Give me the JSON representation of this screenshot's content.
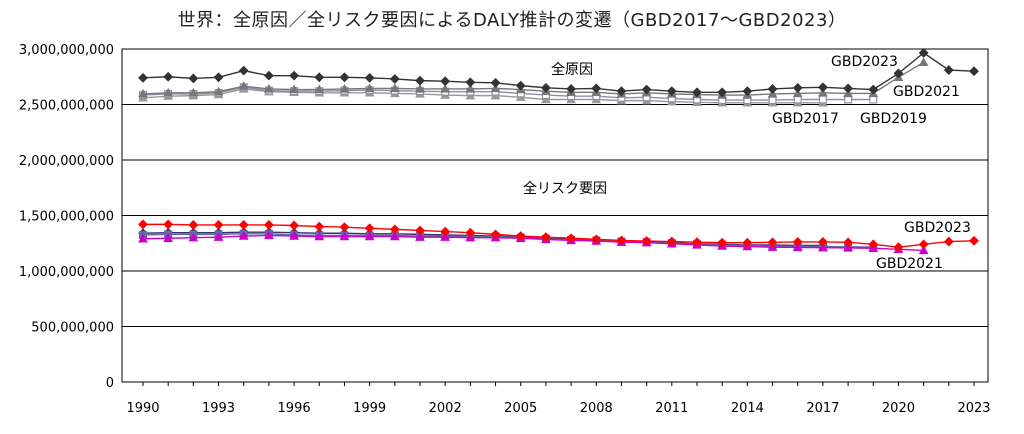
{
  "chart_data": {
    "type": "line",
    "title": "世界：全原因／全リスク要因によるDALY推計の変遷（GBD2017〜GBD2023）",
    "xlabel": "",
    "ylabel": "",
    "ylim": [
      0,
      3000000000
    ],
    "xlim": [
      1990,
      2023
    ],
    "y_ticks": [
      0,
      500000000,
      1000000000,
      1500000000,
      2000000000,
      2500000000,
      3000000000
    ],
    "y_tick_labels": [
      "0",
      "500,000,000",
      "1,000,000,000",
      "1,500,000,000",
      "2,000,000,000",
      "2,500,000,000",
      "3,000,000,000"
    ],
    "x_tick_labels": [
      "1990",
      "1993",
      "1996",
      "1999",
      "2002",
      "2005",
      "2008",
      "2011",
      "2014",
      "2017",
      "2020",
      "2023"
    ],
    "grid": "horizontal",
    "legend": "none",
    "annotations": {
      "all_cause": "全原因",
      "all_risk": "全リスク要因",
      "gbd2023_top": "GBD2023",
      "gbd2021_top": "GBD2021",
      "gbd2017": "GBD2017",
      "gbd2019": "GBD2019",
      "gbd2023_risk": "GBD2023",
      "gbd2021_risk": "GBD2021"
    },
    "series": [
      {
        "group": "all_cause",
        "edition": "GBD2023",
        "color": "#333333",
        "marker": "diamond",
        "x": [
          1990,
          1991,
          1992,
          1993,
          1994,
          1995,
          1996,
          1997,
          1998,
          1999,
          2000,
          2001,
          2002,
          2003,
          2004,
          2005,
          2006,
          2007,
          2008,
          2009,
          2010,
          2011,
          2012,
          2013,
          2014,
          2015,
          2016,
          2017,
          2018,
          2019,
          2020,
          2021,
          2022,
          2023
        ],
        "values": [
          2740000000,
          2750000000,
          2735000000,
          2745000000,
          2805000000,
          2760000000,
          2760000000,
          2745000000,
          2745000000,
          2740000000,
          2730000000,
          2715000000,
          2710000000,
          2700000000,
          2695000000,
          2670000000,
          2650000000,
          2640000000,
          2645000000,
          2620000000,
          2635000000,
          2620000000,
          2610000000,
          2610000000,
          2620000000,
          2640000000,
          2650000000,
          2655000000,
          2645000000,
          2635000000,
          2780000000,
          2965000000,
          2810000000,
          2800000000
        ]
      },
      {
        "group": "all_cause",
        "edition": "GBD2021",
        "color": "#777777",
        "marker": "triangle",
        "x": [
          1990,
          1991,
          1992,
          1993,
          1994,
          1995,
          1996,
          1997,
          1998,
          1999,
          2000,
          2001,
          2002,
          2003,
          2004,
          2005,
          2006,
          2007,
          2008,
          2009,
          2010,
          2011,
          2012,
          2013,
          2014,
          2015,
          2016,
          2017,
          2018,
          2019,
          2020,
          2021
        ],
        "values": [
          2595000000,
          2605000000,
          2605000000,
          2615000000,
          2665000000,
          2640000000,
          2635000000,
          2635000000,
          2640000000,
          2645000000,
          2645000000,
          2640000000,
          2640000000,
          2640000000,
          2645000000,
          2635000000,
          2620000000,
          2610000000,
          2610000000,
          2595000000,
          2605000000,
          2595000000,
          2590000000,
          2585000000,
          2585000000,
          2595000000,
          2600000000,
          2605000000,
          2600000000,
          2600000000,
          2745000000,
          2880000000
        ]
      },
      {
        "group": "all_cause",
        "edition": "GBD2019",
        "color": "#8f8fa8",
        "marker": "square",
        "x": [
          1990,
          1991,
          1992,
          1993,
          1994,
          1995,
          1996,
          1997,
          1998,
          1999,
          2000,
          2001,
          2002,
          2003,
          2004,
          2005,
          2006,
          2007,
          2008,
          2009,
          2010,
          2011,
          2012,
          2013,
          2014,
          2015,
          2016,
          2017,
          2018,
          2019
        ],
        "values": [
          2585000000,
          2595000000,
          2595000000,
          2605000000,
          2655000000,
          2625000000,
          2620000000,
          2620000000,
          2625000000,
          2630000000,
          2625000000,
          2620000000,
          2615000000,
          2615000000,
          2615000000,
          2600000000,
          2585000000,
          2575000000,
          2575000000,
          2560000000,
          2565000000,
          2555000000,
          2545000000,
          2540000000,
          2540000000,
          2540000000,
          2545000000,
          2545000000,
          2545000000,
          2545000000
        ]
      },
      {
        "group": "all_cause",
        "edition": "GBD2017",
        "color": "#999999",
        "marker": "triangle",
        "x": [
          1990,
          1991,
          1992,
          1993,
          1994,
          1995,
          1996,
          1997,
          1998,
          1999,
          2000,
          2001,
          2002,
          2003,
          2004,
          2005,
          2006,
          2007,
          2008,
          2009,
          2010,
          2011,
          2012,
          2013,
          2014,
          2015,
          2016,
          2017
        ],
        "values": [
          2560000000,
          2575000000,
          2580000000,
          2590000000,
          2640000000,
          2615000000,
          2610000000,
          2605000000,
          2605000000,
          2605000000,
          2600000000,
          2595000000,
          2585000000,
          2580000000,
          2580000000,
          2565000000,
          2545000000,
          2545000000,
          2545000000,
          2535000000,
          2535000000,
          2525000000,
          2520000000,
          2515000000,
          2515000000,
          2515000000,
          2515000000,
          2515000000
        ]
      },
      {
        "group": "all_risk",
        "edition": "GBD2023",
        "color": "#ff0000",
        "marker": "diamond",
        "x": [
          1990,
          1991,
          1992,
          1993,
          1994,
          1995,
          1996,
          1997,
          1998,
          1999,
          2000,
          2001,
          2002,
          2003,
          2004,
          2005,
          2006,
          2007,
          2008,
          2009,
          2010,
          2011,
          2012,
          2013,
          2014,
          2015,
          2016,
          2017,
          2018,
          2019,
          2020,
          2021,
          2022,
          2023
        ],
        "values": [
          1420000000,
          1420000000,
          1415000000,
          1415000000,
          1415000000,
          1415000000,
          1410000000,
          1400000000,
          1395000000,
          1385000000,
          1375000000,
          1365000000,
          1355000000,
          1345000000,
          1330000000,
          1315000000,
          1305000000,
          1295000000,
          1285000000,
          1275000000,
          1270000000,
          1265000000,
          1260000000,
          1255000000,
          1255000000,
          1258000000,
          1262000000,
          1262000000,
          1258000000,
          1240000000,
          1215000000,
          1240000000,
          1265000000,
          1272000000
        ]
      },
      {
        "group": "all_risk",
        "edition": "GBD2021",
        "color": "#cc00cc",
        "marker": "triangle",
        "x": [
          1990,
          1991,
          1992,
          1993,
          1994,
          1995,
          1996,
          1997,
          1998,
          1999,
          2000,
          2001,
          2002,
          2003,
          2004,
          2005,
          2006,
          2007,
          2008,
          2009,
          2010,
          2011,
          2012,
          2013,
          2014,
          2015,
          2016,
          2017,
          2018,
          2019,
          2020,
          2021
        ],
        "values": [
          1290000000,
          1295000000,
          1300000000,
          1305000000,
          1315000000,
          1320000000,
          1315000000,
          1310000000,
          1310000000,
          1310000000,
          1310000000,
          1305000000,
          1305000000,
          1300000000,
          1300000000,
          1295000000,
          1285000000,
          1275000000,
          1270000000,
          1260000000,
          1255000000,
          1245000000,
          1235000000,
          1225000000,
          1220000000,
          1215000000,
          1212000000,
          1210000000,
          1208000000,
          1205000000,
          1195000000,
          1185000000
        ]
      },
      {
        "group": "all_risk",
        "edition": "GBD2019",
        "color": "#6666aa",
        "marker": "square",
        "x": [
          1990,
          1991,
          1992,
          1993,
          1994,
          1995,
          1996,
          1997,
          1998,
          1999,
          2000,
          2001,
          2002,
          2003,
          2004,
          2005,
          2006,
          2007,
          2008,
          2009,
          2010,
          2011,
          2012,
          2013,
          2014,
          2015,
          2016,
          2017,
          2018,
          2019
        ],
        "values": [
          1325000000,
          1330000000,
          1330000000,
          1330000000,
          1335000000,
          1335000000,
          1325000000,
          1320000000,
          1320000000,
          1320000000,
          1320000000,
          1315000000,
          1315000000,
          1310000000,
          1310000000,
          1300000000,
          1290000000,
          1280000000,
          1275000000,
          1265000000,
          1260000000,
          1250000000,
          1240000000,
          1235000000,
          1230000000,
          1225000000,
          1222000000,
          1220000000,
          1218000000,
          1215000000
        ]
      },
      {
        "group": "all_risk",
        "edition": "GBD2017",
        "color": "#333366",
        "marker": "diamond",
        "x": [
          1990,
          1991,
          1992,
          1993,
          1994,
          1995,
          1996,
          1997,
          1998,
          1999,
          2000,
          2001,
          2002,
          2003,
          2004,
          2005,
          2006,
          2007,
          2008,
          2009,
          2010,
          2011,
          2012,
          2013,
          2014,
          2015,
          2016,
          2017
        ],
        "values": [
          1340000000,
          1345000000,
          1345000000,
          1345000000,
          1350000000,
          1350000000,
          1345000000,
          1340000000,
          1340000000,
          1335000000,
          1335000000,
          1330000000,
          1325000000,
          1320000000,
          1315000000,
          1305000000,
          1295000000,
          1290000000,
          1280000000,
          1270000000,
          1265000000,
          1255000000,
          1245000000,
          1240000000,
          1235000000,
          1235000000,
          1230000000,
          1230000000
        ]
      }
    ]
  }
}
